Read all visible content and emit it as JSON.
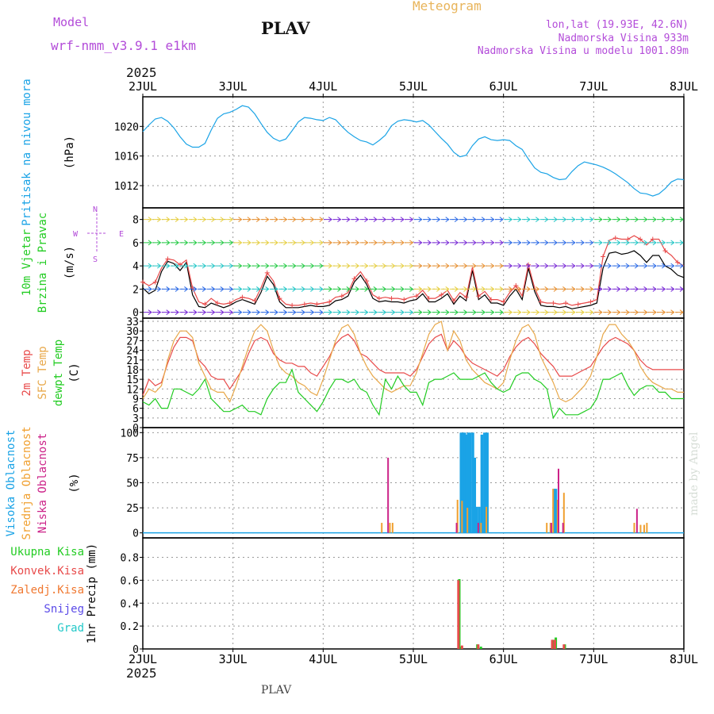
{
  "header": {
    "model_label": "Model",
    "model_name": "wrf-nmm_v3.9.1  e1km",
    "station": "PLAV",
    "title": "Meteogram",
    "lonlat": "lon,lat (19.93E, 42.6N)",
    "elevation": "Nadmorska Visina 933m",
    "elevation_model": "Nadmorska Visina u modelu 1001.89m",
    "year": "2025",
    "footer_station": "PLAV",
    "credit": "made by Angel"
  },
  "colors": {
    "purple": "#b34cd9",
    "gold": "#e8b45a",
    "pressure": "#1aa3e6",
    "temp2m": "#e84a4a",
    "sfc": "#e8a84a",
    "dewpt": "#22cc22",
    "high_cloud": "#1aa3e6",
    "mid_cloud": "#f0a030",
    "low_cloud": "#cc2288",
    "total_precip": "#22cc22",
    "conv_precip": "#e84a4a",
    "frozen_precip": "#f07830",
    "snow": "#5a4ae8",
    "graupel": "#22c8c8",
    "wind_speed": "#000000",
    "gust": "#e84a4a"
  },
  "chart_data": [
    {
      "type": "line",
      "panel": "pressure",
      "x_ticks": [
        "2JUL",
        "3JUL",
        "4JUL",
        "5JUL",
        "6JUL",
        "7JUL",
        "8JUL"
      ],
      "ylabel_main": "Pritisak na nivou mora",
      "ylabel_unit": "(hPa)",
      "ylim": [
        1009,
        1024
      ],
      "y_ticks": [
        1012,
        1016,
        1020
      ],
      "series": [
        {
          "name": "Pritisak na nivou mora",
          "values": [
            1019.3,
            1020.2,
            1021.0,
            1021.2,
            1020.7,
            1019.8,
            1018.6,
            1017.6,
            1017.2,
            1017.2,
            1017.7,
            1019.5,
            1021.1,
            1021.7,
            1021.9,
            1022.3,
            1022.8,
            1022.6,
            1021.7,
            1020.4,
            1019.2,
            1018.4,
            1018.0,
            1018.3,
            1019.4,
            1020.6,
            1021.2,
            1021.1,
            1020.9,
            1020.8,
            1021.2,
            1020.9,
            1020.0,
            1019.2,
            1018.6,
            1018.1,
            1017.9,
            1017.5,
            1018.1,
            1018.8,
            1020.1,
            1020.7,
            1020.9,
            1020.8,
            1020.6,
            1020.8,
            1020.2,
            1019.3,
            1018.4,
            1017.6,
            1016.5,
            1015.9,
            1016.1,
            1017.4,
            1018.3,
            1018.6,
            1018.2,
            1018.1,
            1018.2,
            1018.1,
            1017.4,
            1016.9,
            1015.6,
            1014.4,
            1013.8,
            1013.6,
            1013.1,
            1012.8,
            1012.9,
            1013.9,
            1014.7,
            1015.2,
            1015.0,
            1014.8,
            1014.5,
            1014.1,
            1013.6,
            1013.0,
            1012.4,
            1011.6,
            1011.0,
            1010.9,
            1010.6,
            1010.9,
            1011.6,
            1012.5,
            1012.9,
            1012.8
          ]
        }
      ]
    },
    {
      "type": "line",
      "panel": "wind",
      "x_ticks": [
        "2JUL",
        "3JUL",
        "4JUL",
        "5JUL",
        "6JUL",
        "7JUL",
        "8JUL"
      ],
      "ylabel_main": "10m Vjetar",
      "ylabel_main2": "Brzina i Pravac",
      "ylabel_unit": "(m/s)",
      "ylim": [
        -0.5,
        9
      ],
      "y_ticks": [
        0,
        2,
        4,
        6,
        8
      ],
      "compass": {
        "north": "N",
        "south": "S",
        "west": "W",
        "east": "E"
      },
      "series": [
        {
          "name": "speed",
          "values": [
            2.1,
            1.6,
            1.9,
            3.5,
            4.4,
            4.2,
            3.6,
            4.3,
            1.5,
            0.5,
            0.4,
            0.8,
            0.6,
            0.4,
            0.6,
            0.9,
            1.1,
            0.9,
            0.7,
            1.7,
            3.1,
            2.4,
            0.9,
            0.4,
            0.4,
            0.4,
            0.5,
            0.6,
            0.5,
            0.5,
            0.6,
            1.0,
            1.1,
            1.4,
            2.6,
            3.2,
            2.4,
            1.2,
            0.9,
            1.0,
            0.9,
            0.9,
            0.8,
            1.0,
            1.1,
            1.6,
            0.9,
            0.9,
            1.2,
            1.6,
            0.7,
            1.4,
            1.0,
            3.6,
            1.1,
            1.5,
            0.8,
            0.8,
            0.6,
            1.4,
            2.0,
            1.1,
            3.8,
            1.8,
            0.6,
            0.5,
            0.5,
            0.4,
            0.5,
            0.3,
            0.4,
            0.5,
            0.6,
            0.8,
            3.8,
            5.1,
            5.2,
            5.0,
            5.1,
            5.3,
            4.9,
            4.3,
            4.9,
            4.9,
            4.0,
            3.7,
            3.2,
            3.0
          ]
        },
        {
          "name": "gust",
          "values": [
            2.6,
            2.3,
            2.6,
            3.8,
            4.6,
            4.5,
            4.1,
            4.5,
            2.1,
            0.9,
            0.7,
            1.2,
            0.8,
            0.7,
            0.8,
            1.1,
            1.3,
            1.2,
            1.0,
            2.1,
            3.4,
            2.7,
            1.2,
            0.7,
            0.6,
            0.6,
            0.7,
            0.8,
            0.7,
            0.8,
            0.9,
            1.3,
            1.4,
            1.7,
            2.9,
            3.5,
            2.7,
            1.5,
            1.2,
            1.3,
            1.2,
            1.2,
            1.1,
            1.3,
            1.4,
            1.9,
            1.2,
            1.2,
            1.5,
            1.9,
            1.0,
            1.7,
            1.3,
            3.9,
            1.4,
            1.8,
            1.1,
            1.1,
            0.9,
            1.7,
            2.3,
            1.4,
            4.1,
            2.1,
            0.9,
            0.8,
            0.8,
            0.7,
            0.8,
            0.6,
            0.7,
            0.8,
            0.9,
            1.1,
            4.8,
            6.2,
            6.4,
            6.3,
            6.3,
            6.6,
            6.3,
            5.8,
            6.3,
            6.3,
            5.3,
            4.9,
            4.3,
            4.0
          ]
        }
      ]
    },
    {
      "type": "line",
      "panel": "temperature",
      "x_ticks": [
        "2JUL",
        "3JUL",
        "4JUL",
        "5JUL",
        "6JUL",
        "7JUL",
        "8JUL"
      ],
      "ylabel_main": "2m Temp",
      "ylabel_main2": "SFC Temp",
      "ylabel_main3": "dewpt Temp",
      "ylabel_unit": "(C)",
      "ylim": [
        0,
        34
      ],
      "y_ticks": [
        0,
        3,
        6,
        9,
        12,
        15,
        18,
        21,
        24,
        27,
        30,
        33
      ],
      "series": [
        {
          "name": "2m Temp",
          "values": [
            10,
            15,
            13,
            14,
            20,
            25,
            28,
            28,
            27,
            21,
            19,
            16,
            15,
            15,
            12,
            15,
            18,
            23,
            27,
            28,
            27,
            23,
            21,
            20,
            20,
            19,
            19,
            17,
            16,
            19,
            22,
            26,
            28,
            29,
            27,
            23,
            22,
            20,
            18,
            17,
            17,
            17,
            17,
            16,
            18,
            22,
            26,
            28,
            29,
            24,
            27,
            25,
            22,
            20,
            19,
            18,
            17,
            16,
            18,
            22,
            25,
            27,
            28,
            26,
            23,
            21,
            19,
            16,
            16,
            16,
            17,
            18,
            19,
            22,
            25,
            27,
            28,
            27,
            26,
            24,
            21,
            19,
            18,
            18,
            18,
            18,
            18,
            18
          ]
        },
        {
          "name": "SFC Temp",
          "values": [
            9,
            12,
            11,
            13,
            21,
            27,
            30,
            30,
            28,
            20,
            16,
            12,
            11,
            11,
            8,
            13,
            19,
            25,
            30,
            32,
            30,
            24,
            19,
            17,
            16,
            14,
            13,
            11,
            10,
            15,
            21,
            27,
            31,
            32,
            29,
            23,
            19,
            16,
            14,
            12,
            11,
            12,
            13,
            13,
            17,
            23,
            29,
            32,
            33,
            24,
            30,
            27,
            21,
            18,
            16,
            14,
            13,
            12,
            14,
            21,
            27,
            31,
            32,
            29,
            22,
            18,
            14,
            9,
            8,
            9,
            11,
            13,
            16,
            22,
            29,
            32,
            32,
            29,
            27,
            24,
            19,
            16,
            14,
            13,
            12,
            12,
            11,
            11
          ]
        },
        {
          "name": "dewpt Temp",
          "values": [
            8,
            7,
            9,
            6,
            6,
            12,
            12,
            11,
            10,
            12,
            15,
            9,
            7,
            5,
            5,
            6,
            7,
            5,
            5,
            4,
            9,
            12,
            14,
            14,
            18,
            11,
            9,
            7,
            5,
            8,
            12,
            15,
            15,
            14,
            15,
            12,
            11,
            7,
            4,
            15,
            12,
            16,
            13,
            11,
            11,
            7,
            14,
            15,
            15,
            16,
            17,
            15,
            15,
            15,
            16,
            17,
            14,
            12,
            11,
            12,
            16,
            17,
            17,
            15,
            14,
            12,
            3,
            6,
            4,
            4,
            4,
            5,
            6,
            9,
            15,
            15,
            16,
            17,
            13,
            10,
            12,
            13,
            13,
            11,
            11,
            9,
            9,
            9
          ]
        }
      ]
    },
    {
      "type": "bar",
      "panel": "cloud",
      "x_ticks": [
        "2JUL",
        "3JUL",
        "4JUL",
        "5JUL",
        "6JUL",
        "7JUL",
        "8JUL"
      ],
      "ylabel_main": "Visoka Oblacnost",
      "ylabel_main2": "Srednja Oblacnost",
      "ylabel_main3": "Niska Oblacnost",
      "ylabel_unit": "(%)",
      "ylim": [
        -5,
        105
      ],
      "y_ticks": [
        0,
        25,
        50,
        75,
        100
      ],
      "series": [
        {
          "name": "Visoka Oblacnost",
          "points": [
            {
              "x": 5.53,
              "v": 100
            },
            {
              "x": 5.55,
              "v": 100
            },
            {
              "x": 5.57,
              "v": 100
            },
            {
              "x": 5.59,
              "v": 98
            },
            {
              "x": 5.61,
              "v": 100
            },
            {
              "x": 5.63,
              "v": 100
            },
            {
              "x": 5.66,
              "v": 100
            },
            {
              "x": 5.68,
              "v": 75
            },
            {
              "x": 5.7,
              "v": 26
            },
            {
              "x": 5.73,
              "v": 26
            },
            {
              "x": 5.76,
              "v": 98
            },
            {
              "x": 5.79,
              "v": 100
            },
            {
              "x": 5.82,
              "v": 100
            },
            {
              "x": 6.56,
              "v": 44
            },
            {
              "x": 6.58,
              "v": 44
            }
          ]
        },
        {
          "name": "Srednja Oblacnost",
          "points": [
            {
              "x": 4.65,
              "v": 10
            },
            {
              "x": 4.74,
              "v": 10
            },
            {
              "x": 4.77,
              "v": 10
            },
            {
              "x": 5.49,
              "v": 33
            },
            {
              "x": 5.54,
              "v": 32
            },
            {
              "x": 5.6,
              "v": 25
            },
            {
              "x": 5.75,
              "v": 10
            },
            {
              "x": 5.81,
              "v": 26
            },
            {
              "x": 6.48,
              "v": 10
            },
            {
              "x": 6.52,
              "v": 10
            },
            {
              "x": 6.55,
              "v": 44
            },
            {
              "x": 6.6,
              "v": 33
            },
            {
              "x": 6.67,
              "v": 40
            },
            {
              "x": 7.45,
              "v": 10
            },
            {
              "x": 7.52,
              "v": 8
            },
            {
              "x": 7.56,
              "v": 8
            },
            {
              "x": 7.59,
              "v": 10
            }
          ]
        },
        {
          "name": "Niska Oblacnost",
          "points": [
            {
              "x": 4.72,
              "v": 75
            },
            {
              "x": 5.48,
              "v": 10
            },
            {
              "x": 5.72,
              "v": 10
            },
            {
              "x": 6.53,
              "v": 10
            },
            {
              "x": 6.61,
              "v": 64
            },
            {
              "x": 6.66,
              "v": 10
            },
            {
              "x": 7.48,
              "v": 24
            }
          ]
        }
      ]
    },
    {
      "type": "bar",
      "panel": "precip",
      "x_ticks": [
        "2JUL",
        "3JUL",
        "4JUL",
        "5JUL",
        "6JUL",
        "7JUL",
        "8JUL"
      ],
      "ylabel_main": "1hr Precip (mm)",
      "ylim": [
        0,
        0.97
      ],
      "y_ticks": [
        0,
        0.2,
        0.4,
        0.6,
        0.8
      ],
      "legend": [
        "Ukupna Kisa",
        "Konvek.Kisa",
        "Zaledj.Kisa",
        "Snijeg",
        "Grad"
      ],
      "series": [
        {
          "name": "Ukupna Kisa",
          "points": [
            {
              "x": 5.51,
              "v": 0.61
            },
            {
              "x": 5.53,
              "v": 0.02
            },
            {
              "x": 5.71,
              "v": 0.04
            },
            {
              "x": 5.75,
              "v": 0.02
            },
            {
              "x": 6.55,
              "v": 0.08
            },
            {
              "x": 6.58,
              "v": 0.1
            },
            {
              "x": 6.68,
              "v": 0.04
            }
          ]
        },
        {
          "name": "Konvek.Kisa",
          "points": [
            {
              "x": 5.5,
              "v": 0.6
            },
            {
              "x": 5.54,
              "v": 0.03
            },
            {
              "x": 5.72,
              "v": 0.04
            },
            {
              "x": 6.54,
              "v": 0.08
            },
            {
              "x": 6.57,
              "v": 0.08
            },
            {
              "x": 6.67,
              "v": 0.04
            }
          ]
        },
        {
          "name": "Zaledj.Kisa",
          "points": []
        },
        {
          "name": "Snijeg",
          "points": []
        },
        {
          "name": "Grad",
          "points": []
        }
      ]
    }
  ]
}
